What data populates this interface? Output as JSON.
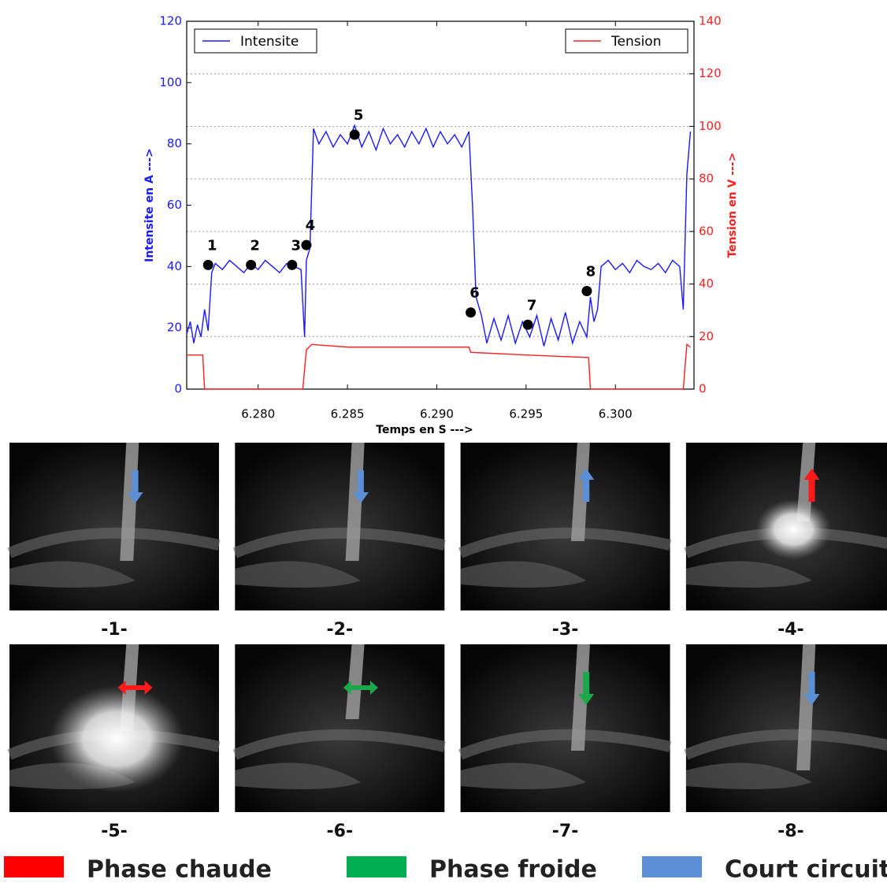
{
  "chart_data": {
    "type": "line",
    "xlabel": "Temps en S --->",
    "ylabel": "Intensite en A --->",
    "y2label": "Tension en V --->",
    "xlim": [
      6.276,
      6.3044
    ],
    "ylim": [
      0,
      120
    ],
    "y2lim": [
      0,
      140
    ],
    "xticks": [
      {
        "value": 6.28,
        "label": "6.280"
      },
      {
        "value": 6.285,
        "label": "6.285"
      },
      {
        "value": 6.29,
        "label": "6.290"
      },
      {
        "value": 6.295,
        "label": "6.295"
      },
      {
        "value": 6.3,
        "label": "6.300"
      }
    ],
    "yticks": [
      0,
      20,
      40,
      60,
      80,
      100,
      120
    ],
    "y2ticks": [
      0,
      20,
      40,
      60,
      80,
      100,
      120,
      140
    ],
    "grid": "y2",
    "series": [
      {
        "name": "Intensite",
        "color": "#1a1aff",
        "axis": "y",
        "legend": "upper left",
        "x": [
          6.276,
          6.2762,
          6.2764,
          6.2766,
          6.2768,
          6.277,
          6.2772,
          6.2774,
          6.2776,
          6.278,
          6.2784,
          6.2788,
          6.2792,
          6.2796,
          6.28,
          6.2804,
          6.2808,
          6.2812,
          6.2816,
          6.282,
          6.2824,
          6.2826,
          6.2827,
          6.2829,
          6.2831,
          6.2834,
          6.2838,
          6.2842,
          6.2846,
          6.285,
          6.2854,
          6.2858,
          6.2862,
          6.2866,
          6.287,
          6.2874,
          6.2878,
          6.2882,
          6.2886,
          6.289,
          6.2894,
          6.2898,
          6.2902,
          6.2906,
          6.291,
          6.2914,
          6.2918,
          6.292,
          6.2922,
          6.2925,
          6.2928,
          6.2932,
          6.2936,
          6.294,
          6.2944,
          6.2948,
          6.2952,
          6.2956,
          6.296,
          6.2964,
          6.2968,
          6.2972,
          6.2976,
          6.298,
          6.2984,
          6.2986,
          6.2988,
          6.299,
          6.2992,
          6.2996,
          6.3,
          6.3004,
          6.3008,
          6.3012,
          6.3016,
          6.302,
          6.3024,
          6.3028,
          6.3032,
          6.3036,
          6.3038,
          6.304,
          6.3042
        ],
        "values": [
          18,
          22,
          15,
          21,
          17,
          26,
          19,
          38,
          41,
          39,
          42,
          40,
          38,
          41,
          39,
          42,
          40,
          38,
          41,
          40,
          39,
          17,
          42,
          46,
          85,
          80,
          84,
          79,
          83,
          80,
          86,
          79,
          84,
          78,
          85,
          80,
          83,
          79,
          84,
          80,
          85,
          79,
          84,
          80,
          83,
          79,
          84,
          60,
          30,
          24,
          15,
          23,
          16,
          24,
          15,
          22,
          17,
          24,
          14,
          23,
          16,
          25,
          15,
          22,
          17,
          30,
          22,
          26,
          40,
          42,
          39,
          41,
          38,
          42,
          40,
          39,
          41,
          38,
          42,
          40,
          26,
          70,
          84
        ]
      },
      {
        "name": "Tension",
        "color": "#ff2020",
        "axis": "y2",
        "legend": "upper right",
        "x": [
          6.276,
          6.2769,
          6.277,
          6.2825,
          6.2827,
          6.283,
          6.285,
          6.29,
          6.2918,
          6.2919,
          6.295,
          6.2985,
          6.2986,
          6.3038,
          6.304,
          6.3042
        ],
        "values": [
          13,
          13,
          0,
          0,
          15,
          17,
          16,
          16,
          16,
          14,
          13,
          12,
          0,
          0,
          17,
          16
        ]
      }
    ],
    "points": {
      "x": [
        6.2772,
        6.2796,
        6.2819,
        6.2827,
        6.2854,
        6.2919,
        6.2951,
        6.2984
      ],
      "y": [
        40.5,
        40.5,
        40.5,
        47,
        83,
        25,
        21,
        32
      ],
      "labels": [
        "1",
        "2",
        "3",
        "4",
        "5",
        "6",
        "7",
        "8"
      ]
    }
  },
  "panels": [
    {
      "caption": "-1-",
      "arrow": "down",
      "color": "#5b8fd6"
    },
    {
      "caption": "-2-",
      "arrow": "down",
      "color": "#5b8fd6"
    },
    {
      "caption": "-3-",
      "arrow": "up",
      "color": "#5b8fd6"
    },
    {
      "caption": "-4-",
      "arrow": "up",
      "color": "#ff1a1a"
    },
    {
      "caption": "-5-",
      "arrow": "both",
      "color": "#ff1a1a"
    },
    {
      "caption": "-6-",
      "arrow": "both",
      "color": "#1aa84a"
    },
    {
      "caption": "-7-",
      "arrow": "down",
      "color": "#1aa84a"
    },
    {
      "caption": "-8-",
      "arrow": "down",
      "color": "#5b8fd6"
    }
  ],
  "legend": [
    {
      "label": "Phase chaude",
      "color": "#ff0000"
    },
    {
      "label": "Phase froide",
      "color": "#00b050"
    },
    {
      "label": "Court circuit",
      "color": "#5b8fd6"
    }
  ]
}
